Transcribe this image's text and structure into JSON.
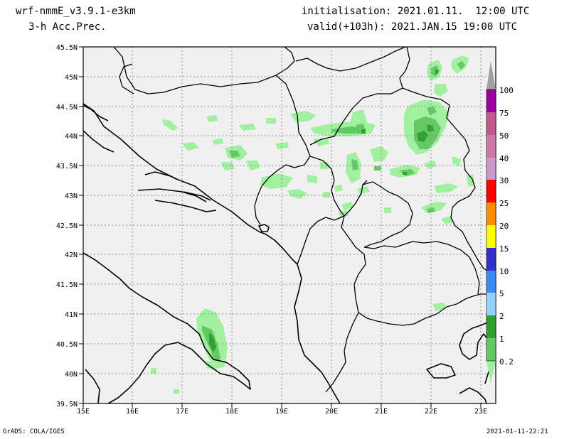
{
  "header": {
    "model": "wrf-nmmE_v3.9.1-e3km",
    "field": "3-h Acc.Prec.",
    "init": "initialisation: 2021.01.11.  12:00 UTC",
    "valid": "valid(+103h): 2021.JAN.15 19:00 UTC"
  },
  "footer": {
    "credit": "GrADS: COLA/IGES",
    "timestamp": "2021-01-11-22:21"
  },
  "axes": {
    "lat_labels": [
      "45.5N",
      "45N",
      "44.5N",
      "44N",
      "43.5N",
      "43N",
      "42.5N",
      "42N",
      "41.5N",
      "41N",
      "40.5N",
      "40N",
      "39.5N"
    ],
    "lon_labels": [
      "15E",
      "16E",
      "17E",
      "18E",
      "19E",
      "20E",
      "21E",
      "22E",
      "23E"
    ]
  },
  "colorbar": {
    "levels": [
      "100",
      "75",
      "50",
      "40",
      "30",
      "25",
      "20",
      "15",
      "10",
      "5",
      "2",
      "1",
      "0.2"
    ],
    "colors": [
      "#9b009b",
      "#c05a8c",
      "#cc7aa8",
      "#cc99cc",
      "#ff0000",
      "#ff8c00",
      "#ffff00",
      "#3232c8",
      "#3c8cf0",
      "#96d2fa",
      "#30a030",
      "#64c864",
      "#a0f0a0"
    ],
    "cap_color": "#a0a0a0"
  },
  "map": {
    "background": "#f0f0f0",
    "precip_colors": {
      "light": "#a0f0a0",
      "mid": "#64c864",
      "heavy": "#30a030"
    }
  }
}
